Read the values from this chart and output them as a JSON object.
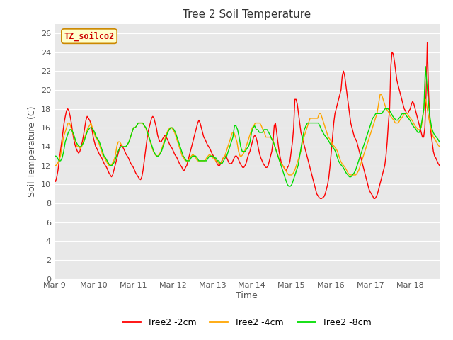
{
  "title": "Tree 2 Soil Temperature",
  "xlabel": "Time",
  "ylabel": "Soil Temperature (C)",
  "ylim": [
    0,
    27
  ],
  "yticks": [
    0,
    2,
    4,
    6,
    8,
    10,
    12,
    14,
    16,
    18,
    20,
    22,
    24,
    26
  ],
  "watermark_text": "TZ_soilco2",
  "fig_bg_color": "#ffffff",
  "plot_bg_color": "#e8e8e8",
  "line_colors": {
    "2cm": "#ff0000",
    "4cm": "#ffa500",
    "8cm": "#00dd00"
  },
  "legend_labels": [
    "Tree2 -2cm",
    "Tree2 -4cm",
    "Tree2 -8cm"
  ],
  "red_data": [
    10.5,
    10.3,
    10.8,
    11.5,
    12.5,
    13.5,
    14.5,
    15.5,
    16.5,
    17.2,
    17.8,
    18.0,
    17.8,
    17.2,
    16.5,
    15.5,
    14.8,
    14.2,
    13.8,
    13.5,
    13.3,
    13.5,
    14.0,
    14.5,
    15.2,
    16.0,
    16.8,
    17.2,
    17.0,
    16.8,
    16.5,
    15.8,
    15.0,
    14.5,
    14.0,
    13.8,
    13.5,
    13.2,
    13.0,
    12.8,
    12.5,
    12.2,
    12.0,
    11.8,
    11.5,
    11.2,
    11.0,
    10.8,
    11.0,
    11.5,
    12.0,
    12.5,
    13.0,
    13.5,
    14.0,
    14.2,
    14.0,
    13.8,
    13.5,
    13.2,
    13.0,
    12.8,
    12.5,
    12.2,
    12.0,
    11.8,
    11.5,
    11.2,
    11.0,
    10.8,
    10.6,
    10.5,
    10.8,
    11.5,
    12.5,
    13.5,
    14.5,
    15.5,
    16.0,
    16.5,
    17.0,
    17.2,
    17.0,
    16.5,
    16.0,
    15.2,
    14.8,
    14.5,
    14.5,
    14.8,
    15.0,
    15.2,
    15.0,
    14.8,
    14.5,
    14.2,
    14.0,
    13.8,
    13.5,
    13.2,
    13.0,
    12.8,
    12.5,
    12.2,
    12.0,
    11.8,
    11.5,
    11.5,
    11.8,
    12.0,
    12.5,
    13.0,
    13.5,
    14.0,
    14.5,
    15.0,
    15.5,
    16.0,
    16.5,
    16.8,
    16.5,
    16.0,
    15.5,
    15.0,
    14.8,
    14.5,
    14.2,
    14.0,
    13.8,
    13.5,
    13.2,
    13.0,
    12.8,
    12.5,
    12.2,
    12.0,
    12.0,
    12.2,
    12.5,
    12.8,
    13.0,
    13.0,
    12.8,
    12.5,
    12.2,
    12.2,
    12.2,
    12.5,
    12.8,
    13.0,
    13.0,
    12.8,
    12.5,
    12.2,
    12.0,
    11.8,
    11.8,
    12.0,
    12.3,
    12.8,
    13.2,
    13.5,
    14.0,
    14.5,
    15.0,
    15.2,
    15.0,
    14.5,
    13.8,
    13.2,
    12.8,
    12.5,
    12.2,
    12.0,
    11.8,
    11.8,
    12.0,
    12.5,
    13.0,
    13.5,
    14.5,
    16.2,
    16.5,
    15.5,
    14.5,
    13.5,
    12.8,
    12.2,
    12.0,
    11.8,
    11.5,
    11.5,
    11.8,
    12.0,
    12.5,
    13.5,
    14.5,
    16.0,
    19.0,
    19.0,
    18.5,
    17.5,
    16.5,
    15.5,
    15.0,
    14.5,
    14.0,
    13.5,
    13.0,
    12.5,
    12.0,
    11.5,
    11.0,
    10.5,
    10.0,
    9.5,
    9.0,
    8.8,
    8.6,
    8.5,
    8.5,
    8.6,
    8.7,
    9.0,
    9.5,
    10.0,
    10.8,
    12.0,
    13.5,
    15.0,
    16.5,
    17.5,
    18.0,
    18.5,
    19.0,
    19.5,
    20.0,
    21.5,
    22.0,
    21.5,
    20.5,
    19.5,
    18.5,
    17.5,
    16.5,
    16.0,
    15.5,
    15.0,
    14.8,
    14.5,
    14.0,
    13.5,
    13.0,
    12.5,
    12.0,
    11.5,
    11.0,
    10.5,
    10.0,
    9.5,
    9.2,
    9.0,
    8.8,
    8.5,
    8.5,
    8.7,
    9.0,
    9.5,
    10.0,
    10.5,
    11.0,
    11.5,
    12.0,
    13.0,
    14.5,
    16.5,
    18.0,
    22.5,
    24.0,
    23.8,
    23.0,
    22.0,
    21.0,
    20.5,
    20.0,
    19.5,
    19.0,
    18.5,
    18.0,
    17.8,
    17.5,
    17.5,
    17.8,
    18.0,
    18.5,
    18.8,
    18.5,
    18.0,
    17.5,
    17.0,
    16.5,
    16.0,
    15.5,
    15.0,
    15.0,
    16.0,
    19.5,
    25.0,
    20.0,
    17.0,
    15.5,
    14.5,
    13.5,
    13.0,
    12.8,
    12.5,
    12.2,
    12.0
  ],
  "orange_data": [
    12.0,
    12.0,
    12.2,
    12.5,
    13.0,
    14.0,
    15.0,
    15.5,
    16.0,
    16.5,
    16.5,
    16.0,
    15.5,
    15.0,
    14.5,
    14.0,
    14.0,
    13.8,
    14.0,
    14.5,
    15.0,
    15.5,
    16.0,
    16.2,
    16.5,
    16.0,
    15.5,
    15.0,
    14.8,
    14.5,
    14.0,
    13.5,
    13.0,
    12.8,
    12.5,
    12.2,
    12.0,
    12.0,
    12.2,
    12.5,
    13.0,
    14.0,
    14.5,
    14.5,
    14.2,
    14.0,
    14.0,
    14.0,
    14.2,
    14.5,
    15.0,
    15.5,
    16.0,
    16.0,
    16.2,
    16.5,
    16.5,
    16.5,
    16.5,
    16.2,
    16.0,
    15.5,
    15.0,
    14.5,
    14.0,
    13.5,
    13.2,
    13.0,
    13.0,
    13.2,
    13.5,
    14.0,
    14.5,
    15.0,
    15.5,
    15.8,
    16.0,
    16.0,
    15.8,
    15.5,
    15.0,
    14.5,
    14.0,
    13.5,
    13.0,
    12.8,
    12.5,
    12.5,
    12.5,
    12.8,
    13.0,
    13.2,
    13.0,
    12.8,
    12.5,
    12.5,
    12.5,
    12.5,
    12.5,
    12.5,
    12.8,
    13.0,
    13.2,
    13.0,
    12.8,
    12.8,
    12.5,
    12.5,
    12.2,
    12.2,
    12.5,
    12.8,
    13.0,
    13.5,
    14.0,
    14.5,
    15.0,
    15.5,
    15.5,
    15.0,
    14.5,
    13.5,
    13.0,
    13.0,
    13.2,
    13.5,
    14.0,
    14.5,
    15.0,
    15.5,
    16.0,
    16.2,
    16.5,
    16.5,
    16.5,
    16.5,
    16.2,
    15.8,
    15.5,
    15.0,
    15.0,
    15.0,
    15.0,
    14.8,
    14.5,
    14.0,
    13.5,
    13.0,
    12.5,
    12.2,
    12.0,
    11.8,
    11.5,
    11.2,
    11.0,
    11.0,
    11.0,
    11.2,
    11.5,
    12.0,
    12.5,
    13.0,
    13.5,
    14.5,
    15.0,
    15.5,
    16.0,
    16.5,
    17.0,
    17.0,
    17.0,
    17.0,
    17.0,
    17.0,
    17.5,
    17.5,
    17.0,
    16.5,
    16.0,
    15.5,
    15.0,
    14.8,
    14.5,
    14.2,
    14.0,
    13.8,
    13.5,
    13.0,
    12.5,
    12.2,
    12.0,
    11.8,
    11.5,
    11.2,
    11.0,
    11.0,
    11.0,
    11.0,
    11.0,
    11.2,
    11.5,
    12.0,
    12.5,
    13.0,
    13.5,
    14.0,
    14.5,
    15.0,
    15.5,
    16.0,
    16.5,
    17.0,
    17.5,
    18.5,
    19.5,
    19.5,
    19.0,
    18.5,
    18.0,
    17.8,
    17.5,
    17.2,
    17.0,
    16.8,
    16.5,
    16.5,
    16.5,
    16.8,
    17.0,
    17.2,
    17.5,
    17.5,
    17.5,
    17.2,
    17.0,
    16.8,
    16.5,
    16.2,
    16.0,
    15.8,
    15.8,
    16.0,
    17.0,
    18.5,
    19.0,
    18.0,
    17.0,
    16.2,
    15.5,
    15.0,
    14.8,
    14.5,
    14.2,
    14.0
  ],
  "green_data": [
    13.0,
    13.0,
    12.8,
    12.5,
    12.5,
    12.8,
    13.5,
    14.5,
    15.0,
    15.5,
    15.8,
    15.8,
    15.5,
    15.0,
    14.5,
    14.2,
    14.0,
    14.0,
    14.2,
    14.5,
    15.0,
    15.5,
    15.8,
    16.0,
    16.0,
    15.8,
    15.5,
    15.0,
    14.8,
    14.5,
    14.0,
    13.5,
    13.0,
    12.8,
    12.5,
    12.2,
    12.0,
    12.0,
    12.2,
    12.5,
    13.0,
    13.5,
    13.8,
    14.0,
    14.0,
    14.0,
    14.0,
    14.2,
    14.5,
    15.0,
    15.5,
    16.0,
    16.0,
    16.2,
    16.5,
    16.5,
    16.5,
    16.5,
    16.2,
    16.0,
    15.5,
    15.0,
    14.5,
    14.0,
    13.5,
    13.2,
    13.0,
    13.0,
    13.2,
    13.5,
    14.0,
    14.5,
    15.0,
    15.5,
    15.8,
    16.0,
    16.0,
    15.8,
    15.5,
    15.0,
    14.5,
    14.0,
    13.5,
    13.0,
    12.8,
    12.5,
    12.5,
    12.5,
    12.8,
    13.0,
    13.0,
    13.0,
    12.8,
    12.5,
    12.5,
    12.5,
    12.5,
    12.5,
    12.5,
    12.8,
    13.0,
    13.0,
    13.0,
    12.8,
    12.8,
    12.5,
    12.5,
    12.2,
    12.2,
    12.5,
    12.8,
    13.0,
    13.5,
    14.0,
    14.5,
    15.0,
    16.2,
    16.2,
    15.8,
    15.0,
    14.0,
    13.5,
    13.5,
    13.5,
    13.8,
    14.0,
    14.5,
    15.5,
    16.0,
    16.2,
    15.8,
    15.8,
    15.5,
    15.5,
    15.5,
    15.8,
    15.8,
    15.8,
    15.5,
    15.2,
    14.8,
    14.5,
    14.0,
    13.5,
    13.0,
    12.5,
    12.0,
    11.5,
    11.0,
    10.5,
    10.0,
    9.8,
    9.8,
    10.0,
    10.5,
    11.0,
    11.5,
    12.0,
    13.0,
    14.0,
    15.0,
    15.8,
    16.2,
    16.5,
    16.5,
    16.5,
    16.5,
    16.5,
    16.5,
    16.5,
    16.5,
    16.2,
    15.8,
    15.5,
    15.2,
    15.0,
    14.8,
    14.5,
    14.2,
    14.0,
    13.8,
    13.5,
    13.0,
    12.5,
    12.2,
    12.0,
    11.8,
    11.5,
    11.2,
    11.0,
    10.8,
    10.8,
    11.0,
    11.2,
    11.5,
    12.0,
    12.5,
    13.0,
    13.5,
    14.0,
    14.5,
    15.0,
    15.5,
    16.0,
    16.5,
    17.0,
    17.2,
    17.5,
    17.5,
    17.5,
    17.5,
    17.5,
    17.8,
    18.0,
    18.0,
    18.0,
    17.8,
    17.5,
    17.2,
    17.0,
    16.8,
    16.8,
    17.0,
    17.2,
    17.5,
    17.5,
    17.5,
    17.2,
    17.0,
    16.8,
    16.5,
    16.2,
    16.0,
    15.8,
    15.5,
    15.5,
    16.0,
    17.0,
    18.0,
    22.5,
    20.5,
    18.5,
    17.0,
    16.0,
    15.5,
    15.2,
    15.0,
    14.8,
    14.5
  ]
}
